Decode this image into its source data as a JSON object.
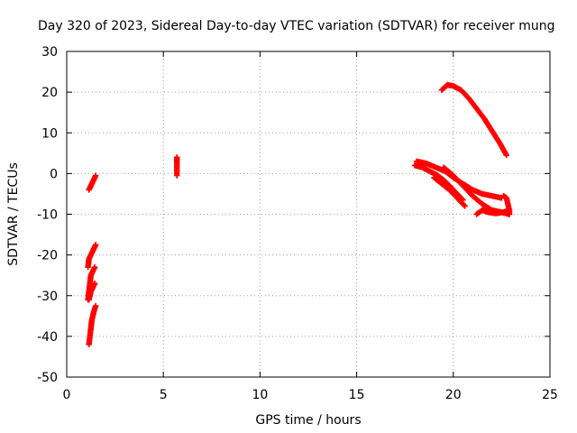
{
  "chart_data": {
    "type": "scatter",
    "title": "Day 320 of 2023, Sidereal Day-to-day VTEC variation (SDTVAR) for receiver mung",
    "xlabel": "GPS time / hours",
    "ylabel": "SDTVAR / TECUs",
    "xlim": [
      0,
      25
    ],
    "ylim": [
      -50,
      30
    ],
    "xticks": [
      "0",
      "5",
      "10",
      "15",
      "20",
      "25"
    ],
    "yticks": [
      "-50",
      "-40",
      "-30",
      "-20",
      "-10",
      "0",
      "10",
      "20",
      "30"
    ],
    "grid": true,
    "marker": "plus",
    "color": "#ff0000",
    "segments": [
      {
        "points": [
          [
            1.15,
            -4.0
          ],
          [
            1.25,
            -3.0
          ],
          [
            1.35,
            -2.0
          ],
          [
            1.45,
            -1.0
          ],
          [
            1.5,
            -0.5
          ]
        ]
      },
      {
        "points": [
          [
            1.1,
            -23.0
          ],
          [
            1.15,
            -21.0
          ],
          [
            1.25,
            -20.0
          ],
          [
            1.35,
            -19.0
          ],
          [
            1.45,
            -18.0
          ],
          [
            1.5,
            -17.5
          ]
        ]
      },
      {
        "points": [
          [
            1.1,
            -31.0
          ],
          [
            1.15,
            -29.0
          ],
          [
            1.2,
            -27.0
          ],
          [
            1.25,
            -25.0
          ],
          [
            1.35,
            -24.0
          ],
          [
            1.45,
            -23.0
          ]
        ]
      },
      {
        "points": [
          [
            1.15,
            -31.0
          ],
          [
            1.25,
            -29.0
          ],
          [
            1.35,
            -28.0
          ],
          [
            1.45,
            -27.0
          ]
        ]
      },
      {
        "points": [
          [
            1.15,
            -42.0
          ],
          [
            1.2,
            -40.0
          ],
          [
            1.25,
            -38.0
          ],
          [
            1.3,
            -36.0
          ],
          [
            1.4,
            -34.0
          ],
          [
            1.5,
            -32.5
          ]
        ]
      },
      {
        "points": [
          [
            5.7,
            4.0
          ],
          [
            5.7,
            3.0
          ],
          [
            5.7,
            2.5
          ],
          [
            5.7,
            -0.5
          ]
        ]
      },
      {
        "points": [
          [
            19.4,
            20.5
          ],
          [
            19.7,
            21.8
          ],
          [
            20.0,
            21.5
          ],
          [
            20.4,
            20.5
          ],
          [
            20.8,
            18.5
          ],
          [
            21.2,
            16.0
          ],
          [
            21.6,
            13.5
          ],
          [
            22.0,
            10.5
          ],
          [
            22.4,
            7.5
          ],
          [
            22.75,
            4.5
          ]
        ]
      },
      {
        "points": [
          [
            18.0,
            2.0
          ],
          [
            18.4,
            1.5
          ],
          [
            18.8,
            0.5
          ],
          [
            19.2,
            -0.5
          ],
          [
            19.6,
            -2.0
          ],
          [
            20.0,
            -4.0
          ],
          [
            20.3,
            -5.5
          ],
          [
            20.5,
            -6.5
          ]
        ]
      },
      {
        "points": [
          [
            18.1,
            3.0
          ],
          [
            18.6,
            2.5
          ],
          [
            19.1,
            1.5
          ],
          [
            19.6,
            0.5
          ],
          [
            20.0,
            -1.0
          ],
          [
            20.5,
            -2.5
          ],
          [
            21.0,
            -4.0
          ],
          [
            21.5,
            -5.0
          ],
          [
            22.0,
            -5.5
          ],
          [
            22.5,
            -6.0
          ]
        ]
      },
      {
        "points": [
          [
            19.0,
            -1.0
          ],
          [
            19.4,
            -2.5
          ],
          [
            19.8,
            -4.0
          ],
          [
            20.1,
            -5.5
          ],
          [
            20.4,
            -7.0
          ],
          [
            20.6,
            -8.0
          ]
        ]
      },
      {
        "points": [
          [
            19.5,
            1.5
          ],
          [
            20.0,
            -0.5
          ],
          [
            20.5,
            -3.0
          ],
          [
            21.0,
            -5.5
          ],
          [
            21.5,
            -7.5
          ],
          [
            22.0,
            -9.0
          ],
          [
            22.5,
            -9.5
          ],
          [
            22.9,
            -10.0
          ]
        ]
      },
      {
        "points": [
          [
            21.2,
            -10.0
          ],
          [
            21.5,
            -9.0
          ],
          [
            21.8,
            -9.5
          ],
          [
            22.2,
            -9.8
          ],
          [
            22.6,
            -9.5
          ],
          [
            22.9,
            -9.0
          ]
        ]
      },
      {
        "points": [
          [
            22.6,
            -5.5
          ],
          [
            22.75,
            -6.0
          ],
          [
            22.85,
            -8.0
          ],
          [
            22.9,
            -9.0
          ],
          [
            22.9,
            -10.0
          ]
        ]
      }
    ]
  }
}
